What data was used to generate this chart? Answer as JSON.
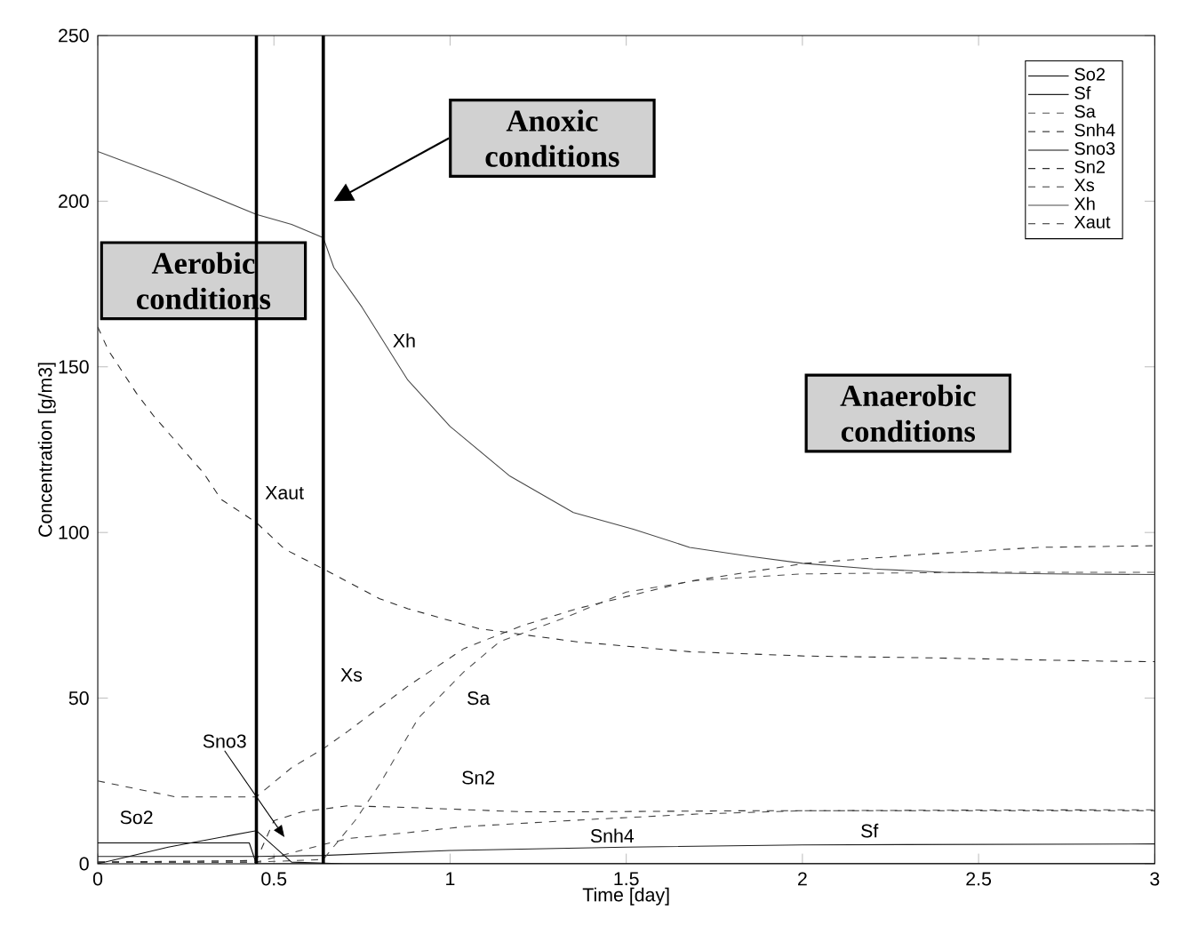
{
  "chart_data": {
    "type": "line",
    "xlabel": "Time [day]",
    "ylabel": "Concentration [g/m3]",
    "xlim": [
      0,
      3
    ],
    "ylim": [
      0,
      250
    ],
    "xticks": [
      0,
      0.5,
      1,
      1.5,
      2,
      2.5,
      3
    ],
    "yticks": [
      0,
      50,
      100,
      150,
      200,
      250
    ],
    "legend": "top right",
    "series": [
      {
        "name": "So2",
        "color": "#000000",
        "line_style": "solid",
        "x": [
          0,
          0.43,
          0.45,
          0.7,
          1,
          2,
          3
        ],
        "values": [
          6.3,
          6.3,
          0,
          0,
          0,
          0,
          0
        ]
      },
      {
        "name": "Sf",
        "color": "#202020",
        "line_style": "solid",
        "x": [
          0,
          0.45,
          0.64,
          1,
          1.5,
          2,
          3
        ],
        "values": [
          2.2,
          2.2,
          2.5,
          4,
          5,
          5.7,
          6
        ]
      },
      {
        "name": "Sa",
        "color": "#505050",
        "line_style": "dashed",
        "x": [
          0,
          0.45,
          0.64,
          0.73,
          0.8,
          0.91,
          1.04,
          1.14,
          1.32,
          1.5,
          1.7,
          2,
          2.5,
          3
        ],
        "values": [
          0.5,
          0.5,
          1.3,
          13,
          24,
          44,
          58,
          67,
          74,
          82,
          85.5,
          87.5,
          88,
          88
        ]
      },
      {
        "name": "Snh4",
        "color": "#404040",
        "line_style": "dashed",
        "x": [
          0,
          0.45,
          0.64,
          0.71,
          0.88,
          1.04,
          1.4,
          1.7,
          2,
          2.5,
          3
        ],
        "values": [
          0.5,
          0.5,
          5.8,
          7.6,
          9.4,
          11.2,
          13.4,
          15,
          16,
          16.2,
          16.3
        ]
      },
      {
        "name": "Sno3",
        "color": "#101010",
        "line_style": "solid",
        "x": [
          0,
          0.2,
          0.45,
          0.55,
          0.7,
          1,
          2,
          3
        ],
        "values": [
          0,
          5,
          10,
          0.5,
          0,
          0,
          0,
          0
        ]
      },
      {
        "name": "Sn2",
        "color": "#303030",
        "line_style": "dashed",
        "x": [
          0,
          0.45,
          0.5,
          0.58,
          0.71,
          0.88,
          1.2,
          1.4,
          1.85,
          2.5,
          3
        ],
        "values": [
          0.5,
          1,
          13,
          15.7,
          17.5,
          17,
          15.7,
          15.7,
          16,
          16,
          16
        ]
      },
      {
        "name": "Xs",
        "color": "#383838",
        "line_style": "dashed",
        "x": [
          0,
          0.22,
          0.45,
          0.55,
          0.64,
          0.71,
          0.88,
          1.04,
          1.2,
          1.36,
          1.68,
          2.01,
          2.34,
          2.67,
          3
        ],
        "values": [
          25,
          20.2,
          20.2,
          29,
          34.7,
          40,
          53.6,
          65,
          71.7,
          77,
          85.3,
          90.7,
          93.4,
          95.5,
          96
        ]
      },
      {
        "name": "Xh",
        "color": "#484848",
        "line_style": "solid",
        "x": [
          0,
          0.2,
          0.45,
          0.55,
          0.64,
          0.67,
          0.75,
          0.88,
          1,
          1.17,
          1.35,
          1.52,
          1.68,
          1.85,
          2,
          2.2,
          2.4,
          2.7,
          3
        ],
        "values": [
          215,
          207,
          196,
          193,
          189,
          180,
          168,
          146,
          132,
          117,
          106,
          101,
          95.5,
          92.8,
          90.7,
          89,
          88,
          87.5,
          87.3
        ]
      },
      {
        "name": "Xaut",
        "color": "#282828",
        "line_style": "dashed",
        "x": [
          0,
          0.03,
          0.11,
          0.16,
          0.3,
          0.35,
          0.45,
          0.53,
          0.64,
          0.8,
          0.88,
          1.08,
          1.36,
          1.68,
          2.01,
          2.34,
          2.83,
          3
        ],
        "values": [
          162,
          155,
          142,
          135,
          118,
          110,
          103,
          95,
          89,
          80,
          77,
          71,
          67,
          64,
          62.7,
          62.2,
          61.2,
          61
        ]
      }
    ],
    "ref_lines": [
      {
        "axis": "x",
        "value": 0.45,
        "color": "#000000"
      },
      {
        "axis": "x",
        "value": 0.64,
        "color": "#000000"
      }
    ],
    "annotations": [
      "Aerobic conditions",
      "Anoxic conditions",
      "Anaerobic conditions",
      "Xh",
      "Xaut",
      "Xs",
      "Sa",
      "Sno3",
      "Sn2",
      "Snh4",
      "So2",
      "Sf"
    ]
  }
}
